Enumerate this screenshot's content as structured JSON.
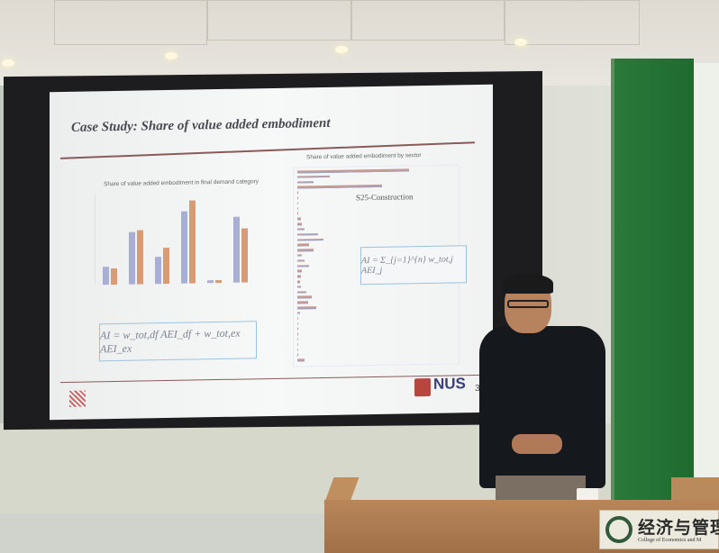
{
  "slide": {
    "title": "Case Study: Share of value added embodiment",
    "left_chart": {
      "title": "Share of value added embodiment in final demand category",
      "series_colors": [
        "#a9aed4",
        "#d99a76"
      ],
      "values": [
        [
          1.2,
          1.1
        ],
        [
          3.5,
          3.6
        ],
        [
          1.8,
          2.4
        ],
        [
          4.8,
          5.5
        ],
        [
          0.2,
          0.2
        ],
        [
          4.4,
          3.6
        ]
      ]
    },
    "right_chart": {
      "title": "Share of value added embodiment by sector",
      "annotation": "S25-Construction",
      "series_colors": [
        "#c99a92",
        "#9aa4c8"
      ],
      "values": [
        95,
        28,
        14,
        72,
        1,
        1,
        1,
        1,
        1,
        3,
        4,
        6,
        18,
        22,
        10,
        14,
        4,
        6,
        10,
        4,
        3,
        2,
        3,
        8,
        12,
        9,
        16,
        2,
        1,
        1,
        1,
        1,
        1,
        1,
        1,
        1,
        6
      ]
    },
    "formula_left": "AI = w_tot,df AEI_df + w_tot,ex AEI_ex",
    "formula_right": "AI = Σ_{j=1}^{n} w_tot,j AEI_j",
    "logo": "NUS",
    "page_number": "3"
  },
  "sign": {
    "chinese": "经济与管理",
    "english": "College of Economics and M"
  }
}
